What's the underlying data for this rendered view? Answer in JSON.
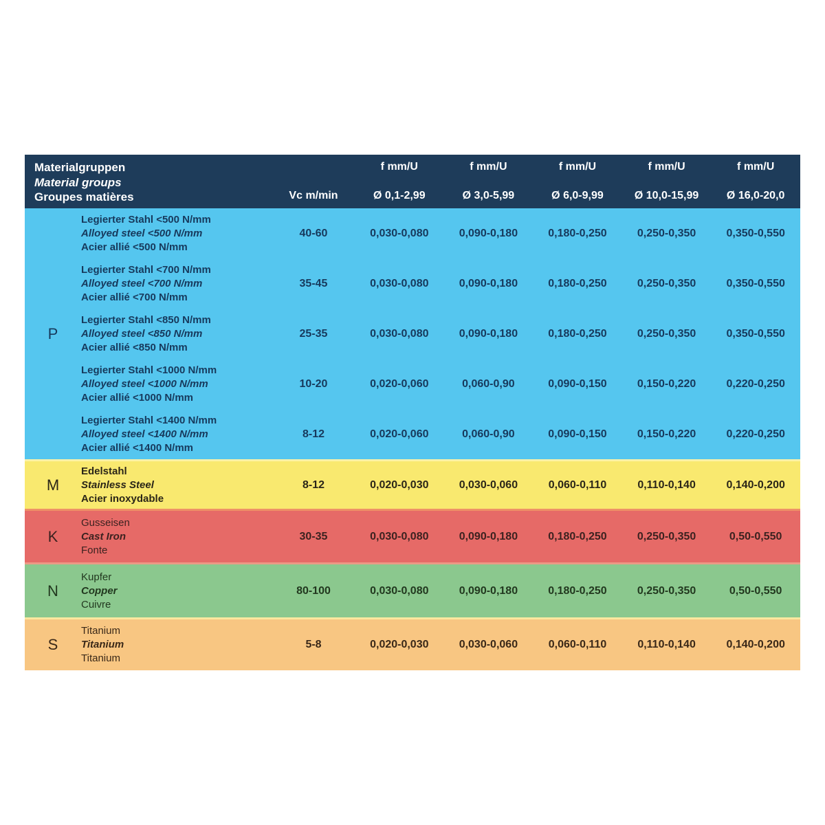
{
  "header": {
    "title_de": "Materialgruppen",
    "title_en": "Material groups",
    "title_fr": "Groupes matières",
    "vc_label": "Vc m/min",
    "feed_label": "f mm/U",
    "diameters": [
      "Ø 0,1-2,99",
      "Ø 3,0-5,99",
      "Ø 6,0-9,99",
      "Ø 10,0-15,99",
      "Ø 16,0-20,0"
    ],
    "bg": "#1e3c5a",
    "fg": "#ffffff"
  },
  "sections": [
    {
      "group": "P",
      "bg": "#55c6ef",
      "fg": "#17395c",
      "rows": [
        {
          "de": "Legierter Stahl <500 N/mm",
          "en": "Alloyed steel <500 N/mm",
          "fr": "Acier allié <500 N/mm",
          "vc": "40-60",
          "f": [
            "0,030-0,080",
            "0,090-0,180",
            "0,180-0,250",
            "0,250-0,350",
            "0,350-0,550"
          ]
        },
        {
          "de": "Legierter Stahl <700 N/mm",
          "en": "Alloyed steel <700 N/mm",
          "fr": "Acier allié <700 N/mm",
          "vc": "35-45",
          "f": [
            "0,030-0,080",
            "0,090-0,180",
            "0,180-0,250",
            "0,250-0,350",
            "0,350-0,550"
          ]
        },
        {
          "de": "Legierter Stahl <850 N/mm",
          "en": "Alloyed steel <850 N/mm",
          "fr": "Acier allié <850 N/mm",
          "vc": "25-35",
          "f": [
            "0,030-0,080",
            "0,090-0,180",
            "0,180-0,250",
            "0,250-0,350",
            "0,350-0,550"
          ]
        },
        {
          "de": "Legierter Stahl <1000 N/mm",
          "en": "Alloyed steel <1000 N/mm",
          "fr": "Acier allié <1000 N/mm",
          "vc": "10-20",
          "f": [
            "0,020-0,060",
            "0,060-0,90",
            "0,090-0,150",
            "0,150-0,220",
            "0,220-0,250"
          ]
        },
        {
          "de": "Legierter Stahl <1400 N/mm",
          "en": "Alloyed steel <1400 N/mm",
          "fr": "Acier allié <1400 N/mm",
          "vc": "8-12",
          "f": [
            "0,020-0,060",
            "0,060-0,90",
            "0,090-0,150",
            "0,150-0,220",
            "0,220-0,250"
          ]
        }
      ]
    },
    {
      "group": "M",
      "bg": "#f9e96f",
      "fg": "#2b2618",
      "rows": [
        {
          "de": "Edelstahl",
          "en": "Stainless Steel",
          "fr": "Acier inoxydable",
          "vc": "8-12",
          "f": [
            "0,020-0,030",
            "0,030-0,060",
            "0,060-0,110",
            "0,110-0,140",
            "0,140-0,200"
          ]
        }
      ]
    },
    {
      "group": "K",
      "bg": "#e66a67",
      "fg": "#3c2220",
      "rows": [
        {
          "de": "Gusseisen",
          "en": "Cast Iron",
          "fr": "Fonte",
          "vc": "30-35",
          "f": [
            "0,030-0,080",
            "0,090-0,180",
            "0,180-0,250",
            "0,250-0,350",
            "0,50-0,550"
          ]
        }
      ]
    },
    {
      "group": "N",
      "bg": "#8bc88e",
      "fg": "#22381f",
      "rows": [
        {
          "de": "Kupfer",
          "en": "Copper",
          "fr": "Cuivre",
          "vc": "80-100",
          "f": [
            "0,030-0,080",
            "0,090-0,180",
            "0,180-0,250",
            "0,250-0,350",
            "0,50-0,550"
          ]
        }
      ]
    },
    {
      "group": "S",
      "bg": "#f8c682",
      "fg": "#3a2818",
      "rows": [
        {
          "de": "Titanium",
          "en": "Titanium",
          "fr": "Titanium",
          "vc": "5-8",
          "f": [
            "0,020-0,030",
            "0,030-0,060",
            "0,060-0,110",
            "0,110-0,140",
            "0,140-0,200"
          ]
        }
      ]
    }
  ]
}
